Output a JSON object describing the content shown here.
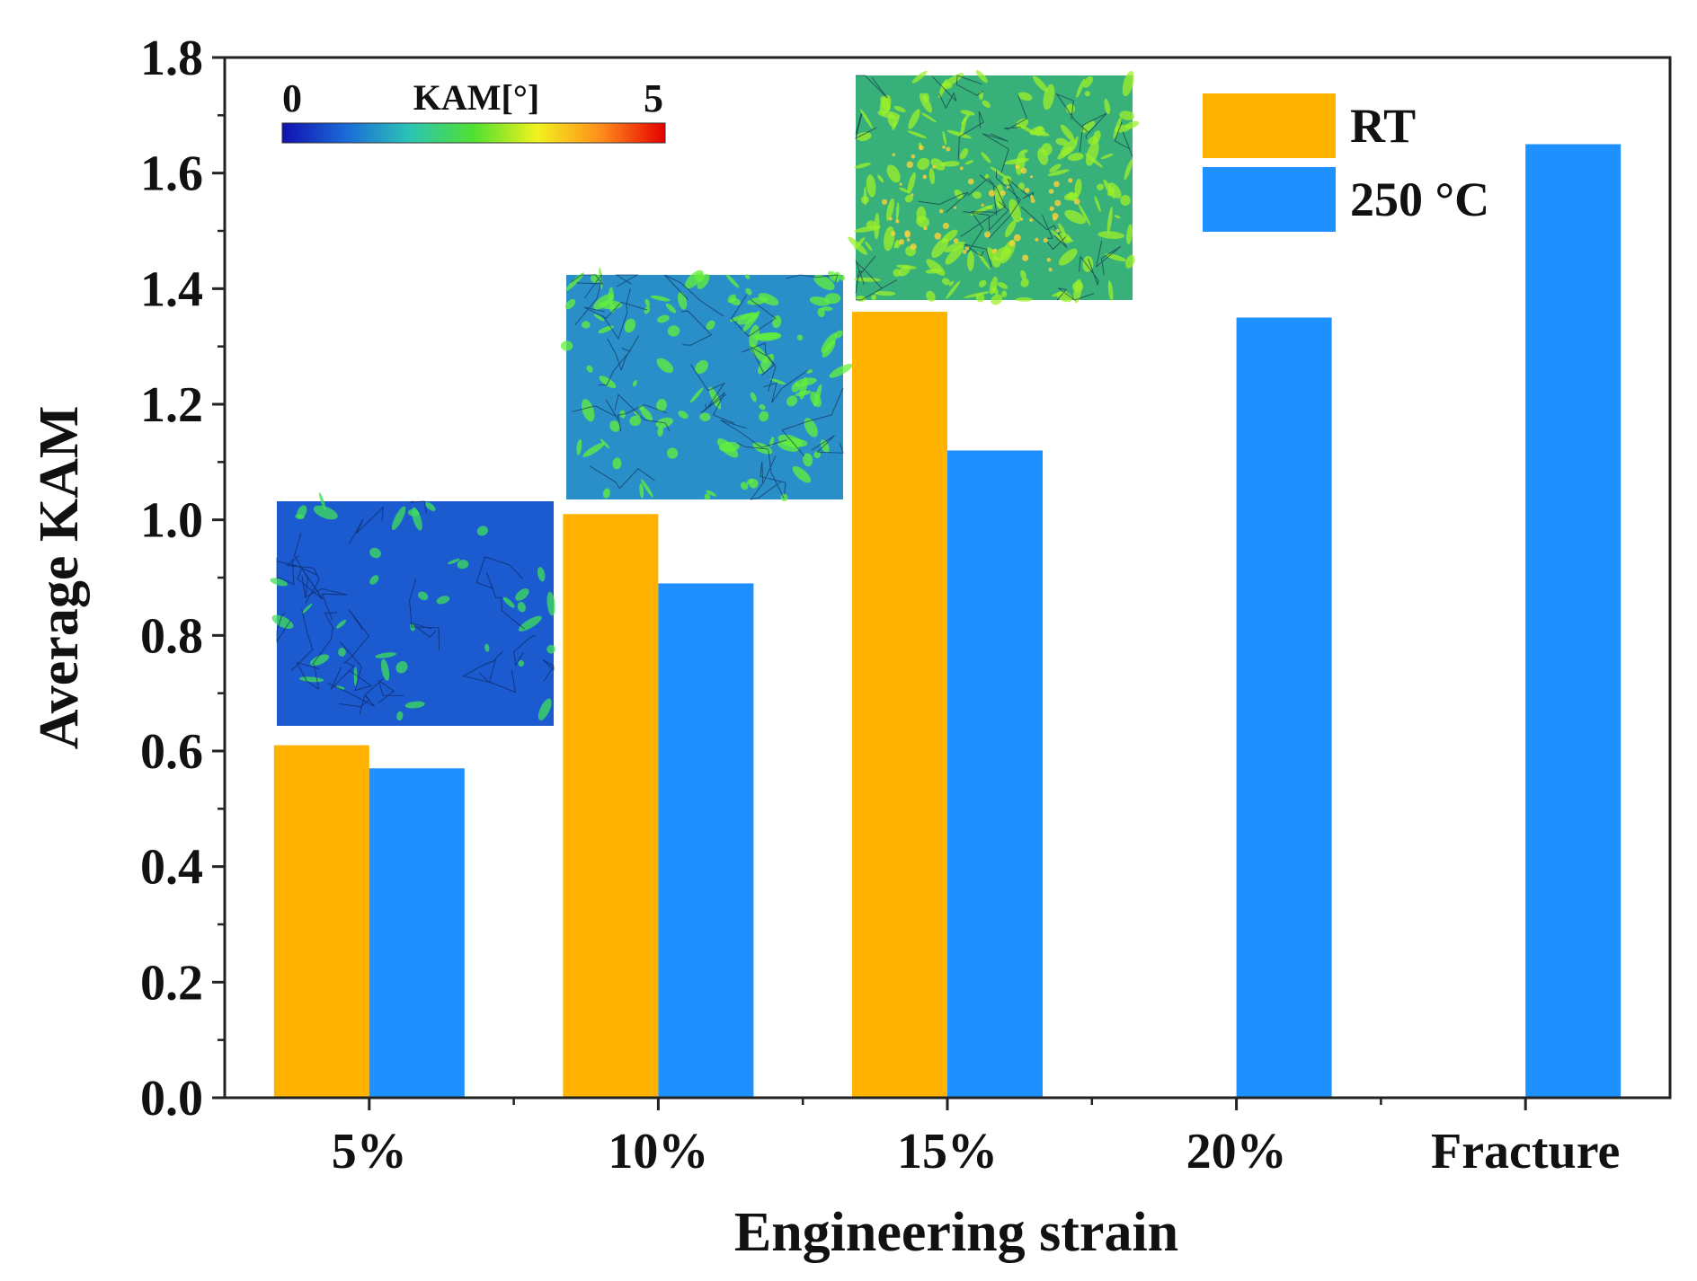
{
  "chart_data": {
    "type": "bar",
    "title": "",
    "xlabel": "Engineering strain",
    "ylabel": "Average KAM",
    "categories": [
      "5%",
      "10%",
      "15%",
      "20%",
      "Fracture"
    ],
    "series": [
      {
        "name": "RT",
        "color": "#FFB300",
        "values": [
          0.61,
          1.01,
          1.36,
          null,
          null
        ]
      },
      {
        "name": "250 °C",
        "color": "#1E90FF",
        "values": [
          0.57,
          0.89,
          1.12,
          1.35,
          1.65
        ]
      }
    ],
    "ylim": [
      0.0,
      1.8
    ],
    "yticks": [
      "0.0",
      "0.2",
      "0.4",
      "0.6",
      "0.8",
      "1.0",
      "1.2",
      "1.4",
      "1.6",
      "1.8"
    ],
    "legend_position": "top-right",
    "grid": false,
    "colorbar": {
      "title": "KAM[°]",
      "min_label": "0",
      "max_label": "5",
      "colors": [
        "#1010b0",
        "#1a6bd8",
        "#2cc4b4",
        "#50e030",
        "#f2f21e",
        "#ff8c1a",
        "#e60000"
      ]
    },
    "inset_maps": [
      {
        "category": "5%",
        "description_level": "low",
        "base_color": "#1c5ad0",
        "highlight_color": "#3fe05a"
      },
      {
        "category": "10%",
        "description_level": "medium",
        "base_color": "#2a8fc8",
        "highlight_color": "#66f03a"
      },
      {
        "category": "15%",
        "description_level": "high",
        "base_color": "#38b07a",
        "highlight_color": "#9cf02a"
      }
    ]
  }
}
